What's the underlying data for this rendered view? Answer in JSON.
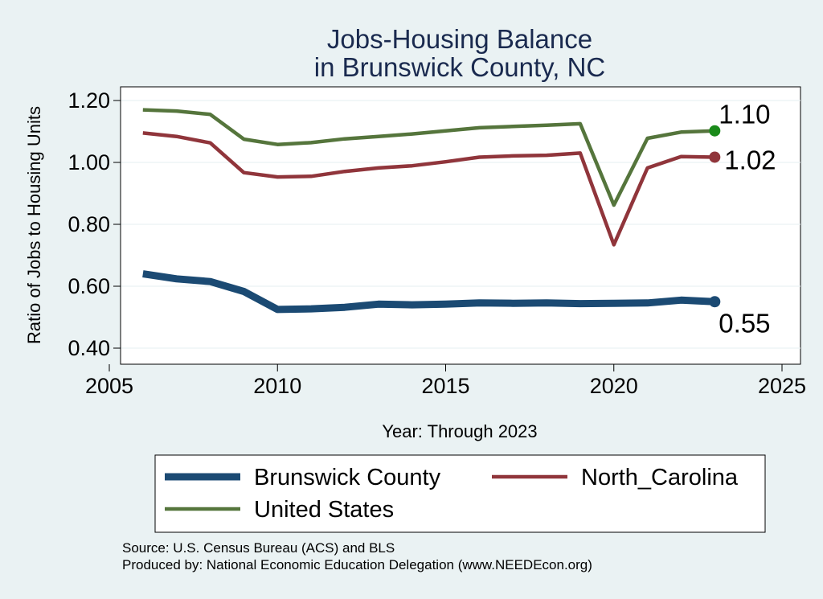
{
  "chart_data": {
    "type": "line",
    "title": [
      "Jobs-Housing Balance",
      "in Brunswick County, NC"
    ],
    "xlabel": "Year: Through 2023",
    "ylabel": "Ratio of Jobs to Housing Units",
    "xlim": [
      2005,
      2025
    ],
    "ylim": [
      0.4,
      1.2
    ],
    "x_ticks": [
      "2005",
      "2010",
      "2015",
      "2020",
      "2025"
    ],
    "y_ticks": [
      "0.40",
      "0.60",
      "0.80",
      "1.00",
      "1.20"
    ],
    "x": [
      2006,
      2007,
      2008,
      2009,
      2010,
      2011,
      2012,
      2013,
      2014,
      2015,
      2016,
      2017,
      2018,
      2019,
      2020,
      2021,
      2022,
      2023
    ],
    "series": [
      {
        "name": "Brunswick County",
        "color": "#1b4a73",
        "values": [
          0.64,
          0.624,
          0.615,
          0.583,
          0.525,
          0.527,
          0.532,
          0.542,
          0.54,
          0.542,
          0.546,
          0.545,
          0.546,
          0.544,
          0.545,
          0.546,
          0.555,
          0.55
        ],
        "end_label": "0.55"
      },
      {
        "name": "North_Carolina",
        "color": "#90353b",
        "values": [
          1.095,
          1.084,
          1.063,
          0.967,
          0.953,
          0.955,
          0.971,
          0.982,
          0.989,
          1.002,
          1.017,
          1.021,
          1.023,
          1.03,
          0.734,
          0.982,
          1.019,
          1.017
        ],
        "end_label": "1.02"
      },
      {
        "name": "United States",
        "color": "#55753c",
        "values": [
          1.17,
          1.166,
          1.155,
          1.075,
          1.058,
          1.064,
          1.076,
          1.084,
          1.092,
          1.102,
          1.112,
          1.116,
          1.12,
          1.125,
          0.862,
          1.078,
          1.098,
          1.102
        ],
        "end_label": "1.10"
      }
    ],
    "legend": {
      "placement": "bottom",
      "entries": [
        "Brunswick County",
        "North_Carolina",
        "United States"
      ]
    },
    "grid": true
  },
  "source_note": {
    "line1": "Source: U.S. Census Bureau (ACS) and BLS",
    "line2": "Produced by: National Economic Education Delegation (www.NEEDEcon.org)"
  }
}
